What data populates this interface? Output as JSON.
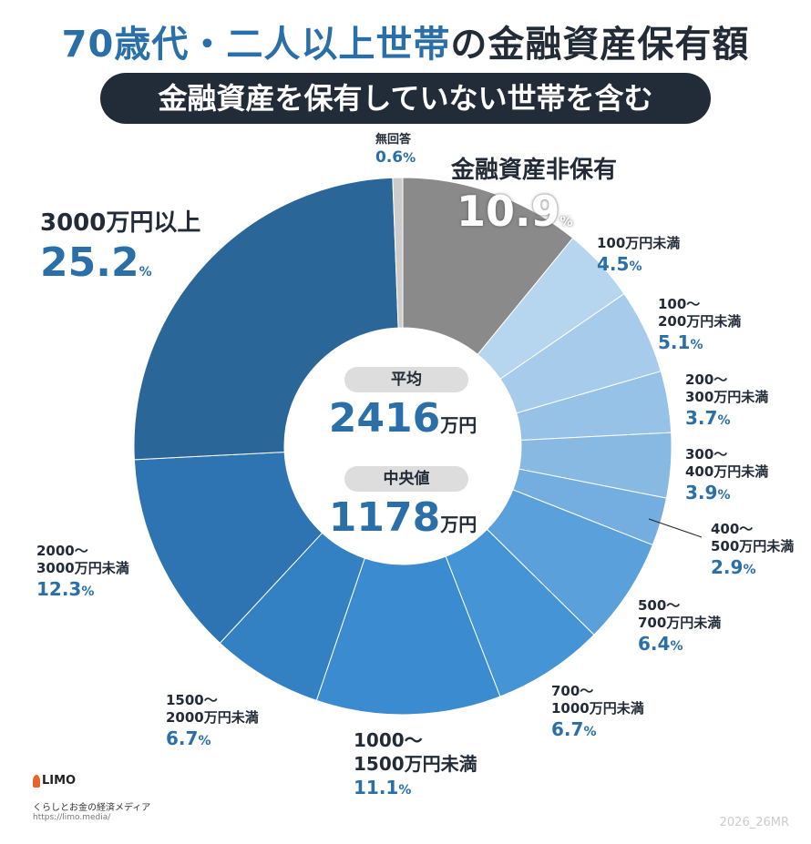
{
  "header": {
    "title_blue": "70歳代・二人以上世帯",
    "title_dark": "の金融資産保有額",
    "subtitle": "金融資産を保有していない世帯を含む"
  },
  "center": {
    "avg_label": "平均",
    "avg_value": "2416",
    "avg_unit": "万円",
    "median_label": "中央値",
    "median_value": "1178",
    "median_unit": "万円"
  },
  "chart_data": {
    "type": "pie",
    "subtype": "donut",
    "title": "70歳代・二人以上世帯の金融資産保有額",
    "subtitle": "金融資産を保有していない世帯を含む",
    "unit": "%",
    "slices": [
      {
        "label": "金融資産非保有",
        "value": 10.9,
        "pct": "10.9",
        "color": "#8a8a8a"
      },
      {
        "label": "100万円未満",
        "value": 4.5,
        "pct": "4.5",
        "color": "#b6d5ef"
      },
      {
        "label": "100〜200万円未満",
        "value": 5.1,
        "pct": "5.1",
        "color": "#a6cbeb"
      },
      {
        "label": "200〜300万円未満",
        "value": 3.7,
        "pct": "3.7",
        "color": "#96c2e7"
      },
      {
        "label": "300〜400万円未満",
        "value": 3.9,
        "pct": "3.9",
        "color": "#87b9e3"
      },
      {
        "label": "400〜500万円未満",
        "value": 2.9,
        "pct": "2.9",
        "color": "#74aee0"
      },
      {
        "label": "500〜700万円未満",
        "value": 6.4,
        "pct": "6.4",
        "color": "#5aa1dc"
      },
      {
        "label": "700〜1000万円未満",
        "value": 6.7,
        "pct": "6.7",
        "color": "#4595d6"
      },
      {
        "label": "1000〜1500万円未満",
        "value": 11.1,
        "pct": "11.1",
        "color": "#3a8bcf"
      },
      {
        "label": "1500〜2000万円未満",
        "value": 6.7,
        "pct": "6.7",
        "color": "#3380c2"
      },
      {
        "label": "2000〜3000万円未満",
        "value": 12.3,
        "pct": "12.3",
        "color": "#2e74b2"
      },
      {
        "label": "3000万円以上",
        "value": 25.2,
        "pct": "25.2",
        "color": "#2b6699"
      },
      {
        "label": "無回答",
        "value": 0.6,
        "pct": "0.6",
        "color": "#cccccc"
      }
    ],
    "label_lines": [
      [
        "金融資産非保有"
      ],
      [
        "100万円未満"
      ],
      [
        "100〜",
        "200万円未満"
      ],
      [
        "200〜",
        "300万円未満"
      ],
      [
        "300〜",
        "400万円未満"
      ],
      [
        "400〜",
        "500万円未満"
      ],
      [
        "500〜",
        "700万円未満"
      ],
      [
        "700〜",
        "1000万円未満"
      ],
      [
        "1000〜",
        "1500万円未満"
      ],
      [
        "1500〜",
        "2000万円未満"
      ],
      [
        "2000〜",
        "3000万円未満"
      ],
      [
        "3000万円以上"
      ],
      [
        "無回答"
      ]
    ]
  },
  "footer": {
    "logo": "LIMO",
    "tagline": "くらしとお金の経済メディア",
    "url": "https://limo.media/",
    "code": "2026_26MR"
  }
}
